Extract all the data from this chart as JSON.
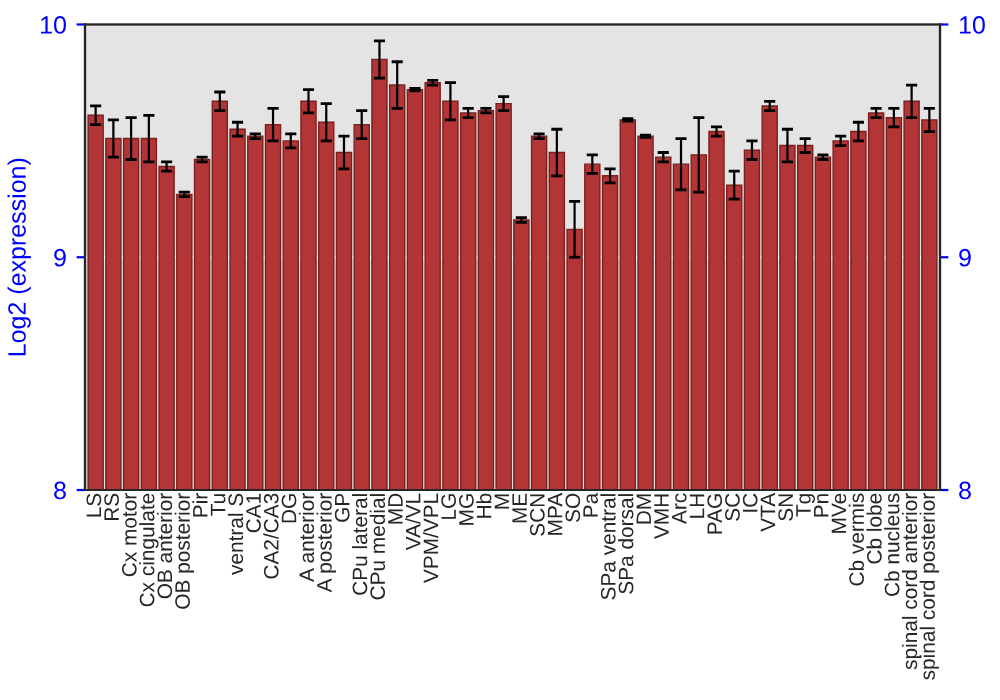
{
  "chart_data": {
    "type": "bar",
    "ylabel": "Log2 (expression)",
    "categories": [
      "LS",
      "RS",
      "Cx motor",
      "Cx cingulate",
      "OB anterior",
      "OB posterior",
      "Pir",
      "Tu",
      "ventral S",
      "CA1",
      "CA2/CA3",
      "DG",
      "A anterior",
      "A posterior",
      "GP",
      "CPu lateral",
      "CPu medial",
      "MD",
      "VA/VL",
      "VPM/VPL",
      "LG",
      "MG",
      "Hb",
      "M",
      "ME",
      "SCN",
      "MPA",
      "SO",
      "Pa",
      "SPa ventral",
      "SPa dorsal",
      "DM",
      "VMH",
      "Arc",
      "LH",
      "PAG",
      "SC",
      "IC",
      "VTA",
      "SN",
      "Tg",
      "Pn",
      "MVe",
      "Cb vermis",
      "Cb lobe",
      "Cb nucleus",
      "spinal cord anterior",
      "spinal cord posterior"
    ],
    "values": [
      9.61,
      9.51,
      9.51,
      9.51,
      9.39,
      9.27,
      9.42,
      9.67,
      9.55,
      9.52,
      9.57,
      9.5,
      9.67,
      9.58,
      9.45,
      9.57,
      9.85,
      9.74,
      9.72,
      9.75,
      9.67,
      9.62,
      9.63,
      9.66,
      9.16,
      9.52,
      9.45,
      9.12,
      9.4,
      9.35,
      9.59,
      9.52,
      9.43,
      9.4,
      9.44,
      9.54,
      9.31,
      9.46,
      9.65,
      9.48,
      9.48,
      9.43,
      9.5,
      9.54,
      9.62,
      9.6,
      9.67,
      9.59
    ],
    "errors": [
      0.04,
      0.08,
      0.09,
      0.1,
      0.02,
      0.01,
      0.01,
      0.04,
      0.03,
      0.01,
      0.07,
      0.03,
      0.05,
      0.08,
      0.07,
      0.06,
      0.08,
      0.1,
      0.005,
      0.01,
      0.08,
      0.02,
      0.01,
      0.03,
      0.01,
      0.01,
      0.1,
      0.12,
      0.04,
      0.03,
      0.005,
      0.005,
      0.02,
      0.11,
      0.16,
      0.02,
      0.06,
      0.04,
      0.02,
      0.07,
      0.03,
      0.01,
      0.02,
      0.04,
      0.02,
      0.04,
      0.07,
      0.05
    ],
    "color": "#b33535",
    "ylim": [
      8,
      10
    ],
    "yticks": [
      8,
      9,
      10
    ],
    "y2lim": [
      8,
      10
    ],
    "y2ticks": [
      8,
      9,
      10
    ],
    "grid": "y",
    "legend": false
  }
}
